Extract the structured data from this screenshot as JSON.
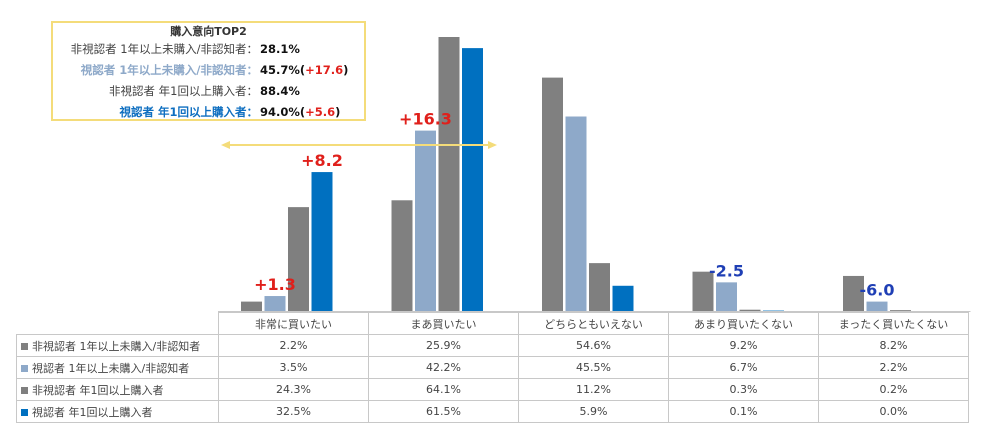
{
  "callout": {
    "title": "購入意向TOP2",
    "rows": [
      {
        "label": "非視認者 1年以上未購入/非認知者：",
        "value": "28.1%",
        "delta": "",
        "style": "gray"
      },
      {
        "label": "視認者 1年以上未購入/非認知者：",
        "value": "45.7%(",
        "delta": "+17.6",
        "close": ")",
        "style": "light"
      },
      {
        "label": "非視認者 年1回以上購入者：",
        "value": "88.4%",
        "delta": "",
        "style": "gray"
      },
      {
        "label": "視認者 年1回以上購入者：",
        "value": "94.0%(",
        "delta": "+5.6",
        "close": ")",
        "style": "blue"
      }
    ]
  },
  "chart_data": {
    "type": "bar",
    "categories": [
      "非常に買いたい",
      "まあ買いたい",
      "どちらともいえない",
      "あまり買いたくない",
      "まったく買いたくない"
    ],
    "series": [
      {
        "name": "非視認者 1年以上未購入/非認知者",
        "color": "#808080",
        "values": [
          2.2,
          25.9,
          54.6,
          9.2,
          8.2
        ],
        "labels": [
          "2.2%",
          "25.9%",
          "54.6%",
          "9.2%",
          "8.2%"
        ]
      },
      {
        "name": "視認者 1年以上未購入/非認知者",
        "color": "#8ea9c9",
        "values": [
          3.5,
          42.2,
          45.5,
          6.7,
          2.2
        ],
        "labels": [
          "3.5%",
          "42.2%",
          "45.5%",
          "6.7%",
          "2.2%"
        ]
      },
      {
        "name": "非視認者 年1回以上購入者",
        "color": "#7f7f7f",
        "values": [
          24.3,
          64.1,
          11.2,
          0.3,
          0.2
        ],
        "labels": [
          "24.3%",
          "64.1%",
          "11.2%",
          "0.3%",
          "0.2%"
        ]
      },
      {
        "name": "視認者 年1回以上購入者",
        "color": "#0070c0",
        "values": [
          32.5,
          61.5,
          5.9,
          0.1,
          0.0
        ],
        "labels": [
          "32.5%",
          "61.5%",
          "5.9%",
          "0.1%",
          "0.0%"
        ]
      }
    ],
    "annotations": [
      {
        "text": "+1.3",
        "category": 0,
        "series": 1,
        "color": "#e0201b"
      },
      {
        "text": "+8.2",
        "category": 0,
        "series": 3,
        "color": "#e0201b"
      },
      {
        "text": "+16.3",
        "category": 1,
        "series": 1,
        "color": "#e0201b"
      },
      {
        "text": "-2.5",
        "category": 3,
        "series": 1,
        "color": "#1f3fb5"
      },
      {
        "text": "-6.0",
        "category": 4,
        "series": 1,
        "color": "#1f3fb5"
      }
    ],
    "ylim": [
      0,
      64.1
    ],
    "grid": false,
    "legend": "table-below"
  }
}
